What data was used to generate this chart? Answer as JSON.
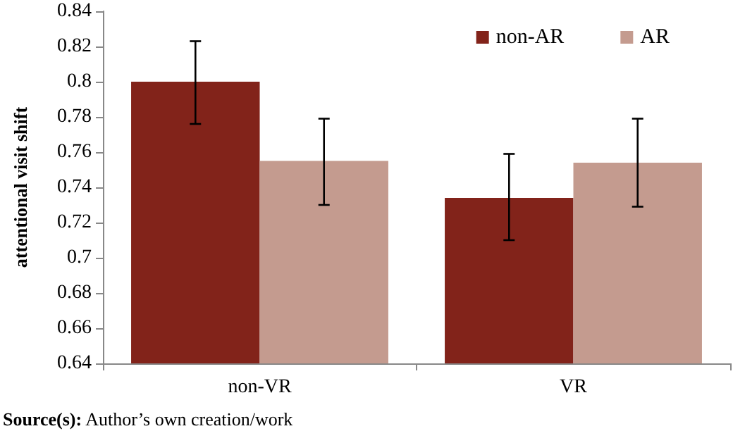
{
  "chart_data": {
    "type": "bar",
    "ylabel": "attentional visit shift",
    "categories": [
      "non-VR",
      "VR"
    ],
    "series": [
      {
        "name": "non-AR",
        "color": "#82231a",
        "values": [
          0.8,
          0.734
        ],
        "errors": [
          [
            0.776,
            0.823
          ],
          [
            0.71,
            0.759
          ]
        ]
      },
      {
        "name": "AR",
        "color": "#c49b8f",
        "values": [
          0.755,
          0.754
        ],
        "errors": [
          [
            0.73,
            0.779
          ],
          [
            0.729,
            0.779
          ]
        ]
      }
    ],
    "ylim": [
      0.64,
      0.84
    ],
    "yticks": [
      0.64,
      0.66,
      0.68,
      0.7,
      0.72,
      0.74,
      0.76,
      0.78,
      0.8,
      0.82,
      0.84
    ],
    "grid": false,
    "legend": "top right",
    "annotations": [
      "Source(s): Author’s own creation/work"
    ]
  }
}
